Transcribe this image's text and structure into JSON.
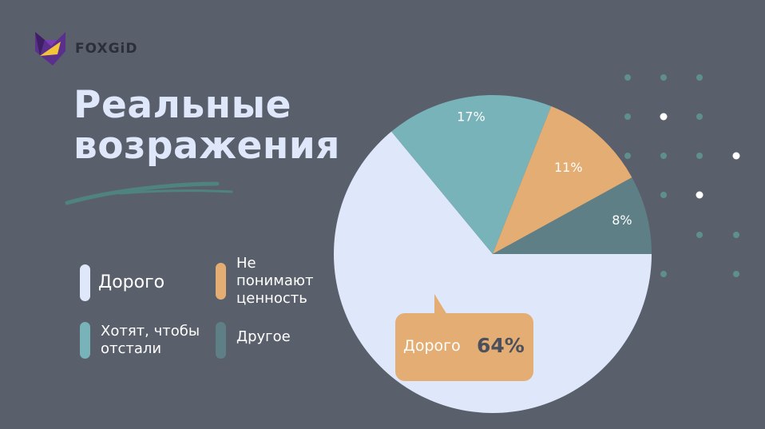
{
  "brand": {
    "name": "FOXGiD"
  },
  "title": {
    "line1": "Реальные",
    "line2": "возражения"
  },
  "legend": [
    {
      "label": "Дорого",
      "color": "#dfe8fb"
    },
    {
      "label": "Не понимают ценность",
      "color": "#e4ad73"
    },
    {
      "label": "Хотят, чтобы отстали",
      "color": "#77b3b9"
    },
    {
      "label": "Другое",
      "color": "#5e7f86"
    }
  ],
  "chart_data": {
    "type": "pie",
    "categories": [
      "Дорого",
      "Хотят, чтобы отстали",
      "Не понимают ценность",
      "Другое"
    ],
    "values": [
      64,
      17,
      11,
      8
    ],
    "labels": [
      "64%",
      "17%",
      "11%",
      "8%"
    ],
    "colors": [
      "#dfe8fb",
      "#77b3b9",
      "#e4ad73",
      "#5e7f86"
    ],
    "callout": {
      "category": "Дорого",
      "value": "64%"
    }
  },
  "colors": {
    "background": "#5a5f6c",
    "dot_teal": "#5f8f8c",
    "dot_white": "#ffffff"
  }
}
